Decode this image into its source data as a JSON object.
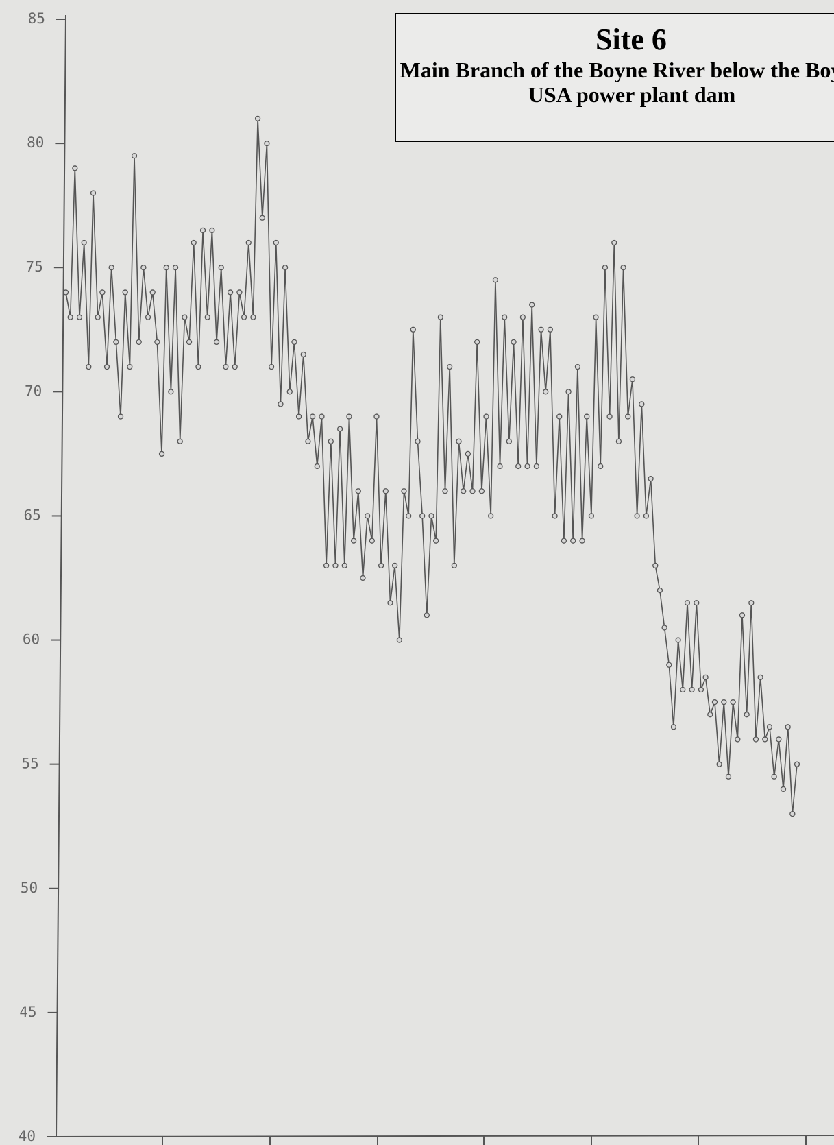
{
  "title": "Site 6",
  "subtitle": "Main Branch of the Boyne River below the Boyne USA power plant dam",
  "chart_data": {
    "type": "line",
    "color": "#555555",
    "values": [
      74,
      73,
      79,
      73,
      76,
      71,
      78,
      73,
      74,
      71,
      75,
      72,
      69,
      74,
      71,
      79.5,
      72,
      75,
      73,
      74,
      72,
      67.5,
      75,
      70,
      75,
      68,
      73,
      72,
      76,
      71,
      76.5,
      73,
      76.5,
      72,
      75,
      71,
      74,
      71,
      74,
      73,
      76,
      73,
      81,
      77,
      80,
      71,
      76,
      69.5,
      75,
      70,
      72,
      69,
      71.5,
      68,
      69,
      67,
      69,
      63,
      68,
      63,
      68.5,
      63,
      69,
      64,
      66,
      62.5,
      65,
      64,
      69,
      63,
      66,
      61.5,
      63,
      60,
      66,
      65,
      72.5,
      68,
      65,
      61,
      65,
      64,
      73,
      66,
      71,
      63,
      68,
      66,
      67.5,
      66,
      72,
      66,
      69,
      65,
      74.5,
      67,
      73,
      68,
      72,
      67,
      73,
      67,
      73.5,
      67,
      72.5,
      70,
      72.5,
      65,
      69,
      64,
      70,
      64,
      71,
      64,
      69,
      65,
      73,
      67,
      75,
      69,
      76,
      68,
      75,
      69,
      70.5,
      65,
      69.5,
      65,
      66.5,
      63,
      62,
      60.5,
      59,
      56.5,
      60,
      58,
      61.5,
      58,
      61.5,
      58,
      58.5,
      57,
      57.5,
      55,
      57.5,
      54.5,
      57.5,
      56,
      61,
      57,
      61.5,
      56,
      58.5,
      56,
      56.5,
      54.5,
      56,
      54,
      56.5,
      53,
      55
    ],
    "ylim": [
      40,
      85
    ],
    "yticks": [
      40,
      45,
      50,
      55,
      60,
      65,
      70,
      75,
      80,
      85
    ]
  }
}
